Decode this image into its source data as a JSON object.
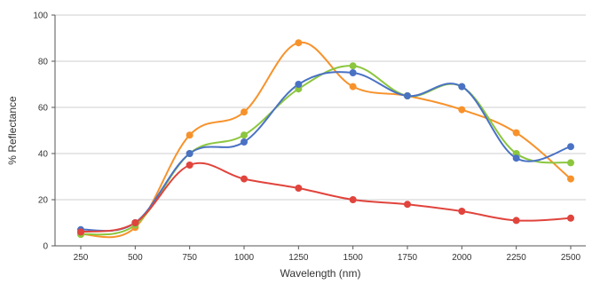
{
  "chart_data": {
    "type": "line",
    "xlabel": "Wavelength (nm)",
    "ylabel": "% Reflectance",
    "x": [
      250,
      500,
      750,
      1000,
      1250,
      1500,
      1750,
      2000,
      2250,
      2500
    ],
    "xlim": [
      250,
      2500
    ],
    "ylim": [
      0,
      100
    ],
    "yticks": [
      0,
      20,
      40,
      60,
      80,
      100
    ],
    "grid": true,
    "series": [
      {
        "color": "#f7922b",
        "values": [
          5,
          8,
          48,
          58,
          88,
          69,
          65,
          59,
          49,
          29
        ]
      },
      {
        "color": "#8cc63f",
        "values": [
          5,
          9,
          40,
          48,
          68,
          78,
          65,
          69,
          40,
          36
        ]
      },
      {
        "color": "#4a72c4",
        "values": [
          7,
          10,
          40,
          45,
          70,
          75,
          65,
          69,
          38,
          43
        ]
      },
      {
        "color": "#e0443c",
        "values": [
          6,
          10,
          35,
          29,
          25,
          20,
          18,
          15,
          11,
          12
        ]
      }
    ]
  }
}
